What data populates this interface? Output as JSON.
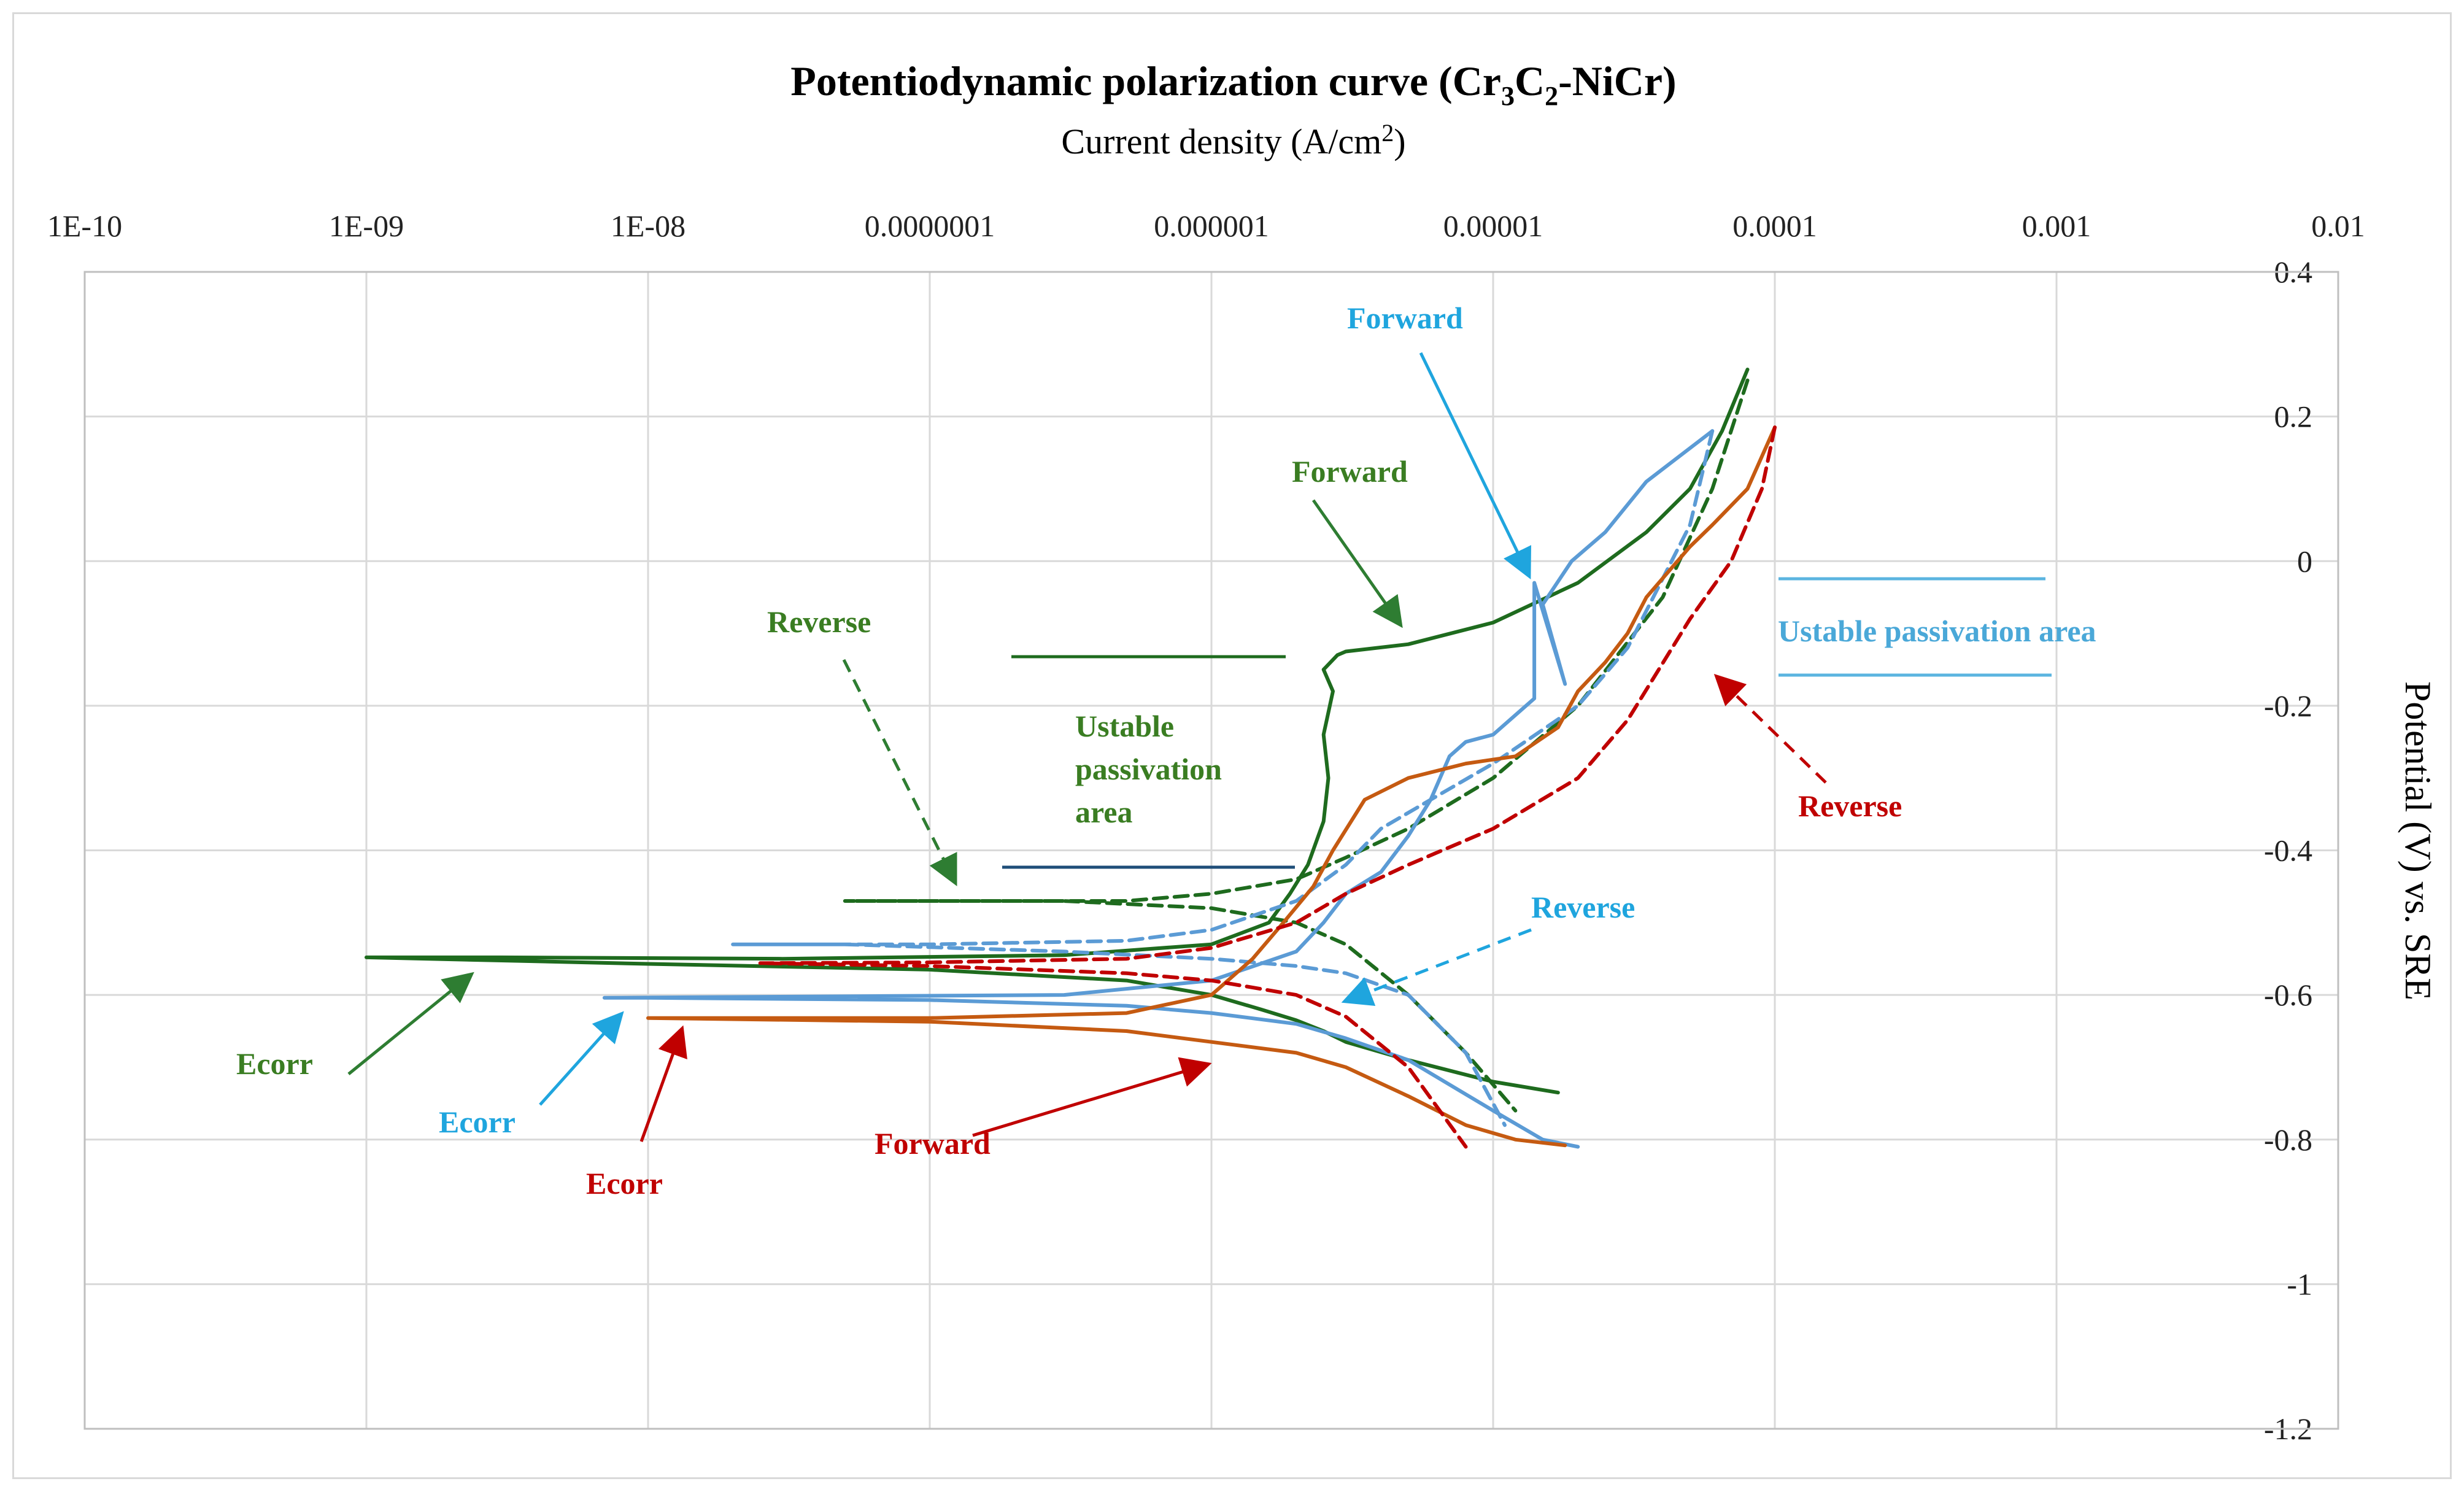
{
  "chart_data": {
    "type": "line",
    "title": "Potentiodynamic polarization curve (Cr3C2-NiCr)",
    "title_parts": {
      "main": "Potentiodynamic polarization curve (Cr",
      "s1": "3",
      "m2": "C",
      "s2": "2",
      "tail": "-NiCr)"
    },
    "xlabel": "Current density (A/cm2)",
    "xlabel_parts": {
      "main": "Current density (A/cm",
      "sup": "2",
      "tail": ")"
    },
    "ylabel": "Potential (V)  vs. SRE",
    "x_scale": "log",
    "xlim": [
      1e-10,
      0.01
    ],
    "ylim": [
      -1.2,
      0.4
    ],
    "x_tick_labels": [
      "1E-10",
      "1E-09",
      "1E-08",
      "0.0000001",
      "0.000001",
      "0.00001",
      "0.0001",
      "0.001",
      "0.01"
    ],
    "y_tick_labels": [
      "0.4",
      "0.2",
      "0",
      "-0.2",
      "-0.4",
      "-0.6",
      "-0.8",
      "-1",
      "-1.2"
    ],
    "grid": true,
    "series": [
      {
        "name": "Green forward",
        "color": "#1e6b1e",
        "style": "solid",
        "x": [
          1.7e-05,
          1e-05,
          5e-06,
          3e-06,
          2.5e-06,
          2e-06,
          1.5e-06,
          1e-06,
          5e-07,
          1e-07,
          1e-08,
          1e-09,
          3e-09,
          3e-08,
          3e-07,
          1e-06,
          1.6e-06,
          1.9e-06,
          2.2e-06,
          2.5e-06,
          2.6e-06,
          2.5e-06,
          2.7e-06,
          2.5e-06,
          2.8e-06,
          3e-06,
          5e-06,
          1e-05,
          2e-05,
          3.5e-05,
          5e-05,
          6.5e-05,
          8e-05
        ],
        "y": [
          -0.735,
          -0.72,
          -0.69,
          -0.665,
          -0.65,
          -0.635,
          -0.62,
          -0.6,
          -0.58,
          -0.565,
          -0.557,
          -0.548,
          -0.548,
          -0.55,
          -0.545,
          -0.53,
          -0.5,
          -0.46,
          -0.42,
          -0.36,
          -0.3,
          -0.24,
          -0.18,
          -0.15,
          -0.13,
          -0.125,
          -0.115,
          -0.085,
          -0.03,
          0.04,
          0.1,
          0.18,
          0.265
        ]
      },
      {
        "name": "Green reverse",
        "color": "#1e6b1e",
        "style": "dashed",
        "x": [
          8e-05,
          6e-05,
          4e-05,
          2e-05,
          1e-05,
          5e-06,
          3e-06,
          2e-06,
          1e-06,
          5e-07,
          2e-07,
          5e-08,
          3e-07,
          1e-06,
          2e-06,
          3e-06,
          5e-06,
          8e-06,
          1.2e-05
        ],
        "y": [
          0.25,
          0.1,
          -0.05,
          -0.2,
          -0.3,
          -0.37,
          -0.41,
          -0.44,
          -0.46,
          -0.47,
          -0.47,
          -0.47,
          -0.47,
          -0.48,
          -0.5,
          -0.53,
          -0.6,
          -0.68,
          -0.76
        ]
      },
      {
        "name": "Blue forward",
        "color": "#5b9bd5",
        "style": "solid",
        "x": [
          2e-05,
          1.5e-05,
          1e-05,
          5e-06,
          3e-06,
          2e-06,
          1e-06,
          5e-07,
          1e-07,
          1e-08,
          7e-09,
          3e-07,
          1e-06,
          2e-06,
          2.5e-06,
          3e-06,
          4e-06,
          5e-06,
          6e-06,
          7e-06,
          8e-06,
          1e-05,
          1.4e-05,
          1.4e-05,
          1.8e-05,
          1.5e-05,
          1.9e-05,
          2.5e-05,
          3.5e-05,
          6e-05
        ],
        "y": [
          -0.81,
          -0.8,
          -0.76,
          -0.69,
          -0.66,
          -0.64,
          -0.625,
          -0.615,
          -0.607,
          -0.604,
          -0.604,
          -0.6,
          -0.58,
          -0.54,
          -0.5,
          -0.46,
          -0.43,
          -0.38,
          -0.33,
          -0.27,
          -0.25,
          -0.24,
          -0.19,
          -0.03,
          -0.17,
          -0.06,
          0.0,
          0.04,
          0.11,
          0.18
        ]
      },
      {
        "name": "Blue reverse",
        "color": "#5b9bd5",
        "style": "dashed",
        "x": [
          6e-05,
          5e-05,
          3e-05,
          2e-05,
          1e-05,
          6e-06,
          4e-06,
          3e-06,
          2e-06,
          1e-06,
          5e-07,
          1e-07,
          2e-08,
          5e-08,
          3e-07,
          1e-06,
          2e-06,
          3e-06,
          5e-06,
          8e-06,
          1.1e-05
        ],
        "y": [
          0.18,
          0.05,
          -0.12,
          -0.2,
          -0.28,
          -0.33,
          -0.37,
          -0.42,
          -0.47,
          -0.51,
          -0.525,
          -0.53,
          -0.53,
          -0.53,
          -0.54,
          -0.55,
          -0.56,
          -0.57,
          -0.6,
          -0.68,
          -0.78
        ]
      },
      {
        "name": "Orange forward",
        "color": "#c55a11",
        "style": "solid",
        "x": [
          1.8e-05,
          1.2e-05,
          8e-06,
          5e-06,
          3e-06,
          2e-06,
          1e-06,
          5e-07,
          1e-07,
          1e-08,
          1e-07,
          5e-07,
          1e-06,
          1.4e-06,
          1.8e-06,
          2.3e-06,
          2.7e-06,
          3.5e-06,
          5e-06,
          8e-06,
          1.2e-05,
          1.7e-05,
          2e-05,
          2.5e-05,
          3e-05,
          3.5e-05,
          5e-05,
          6e-05,
          8e-05,
          0.0001
        ],
        "y": [
          -0.808,
          -0.8,
          -0.78,
          -0.74,
          -0.7,
          -0.68,
          -0.665,
          -0.65,
          -0.637,
          -0.632,
          -0.632,
          -0.625,
          -0.6,
          -0.55,
          -0.5,
          -0.45,
          -0.4,
          -0.33,
          -0.3,
          -0.28,
          -0.27,
          -0.23,
          -0.18,
          -0.14,
          -0.1,
          -0.05,
          0.02,
          0.05,
          0.1,
          0.185
        ]
      },
      {
        "name": "Orange reverse",
        "color": "#c00000",
        "style": "dashed",
        "x": [
          0.0001,
          9e-05,
          7e-05,
          5e-05,
          3e-05,
          2e-05,
          1e-05,
          5e-06,
          3e-06,
          2e-06,
          1e-06,
          5e-07,
          1e-07,
          2.5e-08,
          1e-07,
          5e-07,
          1e-06,
          2e-06,
          3e-06,
          5e-06,
          8e-06
        ],
        "y": [
          0.185,
          0.1,
          0.0,
          -0.08,
          -0.22,
          -0.3,
          -0.37,
          -0.42,
          -0.46,
          -0.5,
          -0.535,
          -0.55,
          -0.555,
          -0.556,
          -0.56,
          -0.57,
          -0.58,
          -0.6,
          -0.63,
          -0.7,
          -0.81
        ]
      }
    ],
    "annotations": [
      {
        "text": "Forward",
        "color": "#1e6b1e"
      },
      {
        "text": "Reverse",
        "color": "#1e6b1e"
      },
      {
        "text": "Ustable",
        "color": "#1e6b1e"
      },
      {
        "text": "passivation",
        "color": "#1e6b1e"
      },
      {
        "text": "area",
        "color": "#1e6b1e"
      },
      {
        "text": "Ecorr",
        "color": "#1e6b1e"
      },
      {
        "text": "Forward",
        "color": "#1fa5de"
      },
      {
        "text": "Ustable passivation  area",
        "color": "#4aa8d8"
      },
      {
        "text": "Reverse",
        "color": "#1fa5de"
      },
      {
        "text": "Ecorr",
        "color": "#1fa5de"
      },
      {
        "text": "Reverse",
        "color": "#c00000"
      },
      {
        "text": "Forward",
        "color": "#c00000"
      },
      {
        "text": "Ecorr",
        "color": "#c00000"
      }
    ]
  }
}
